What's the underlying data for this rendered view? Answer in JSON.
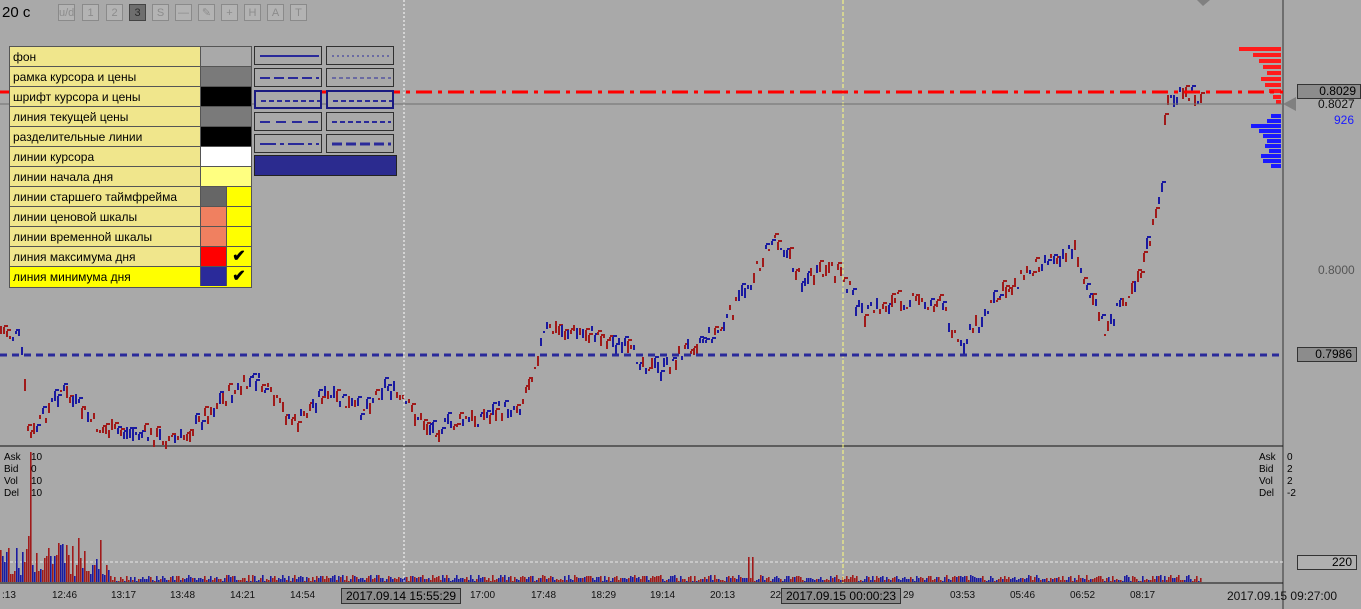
{
  "toolbar": {
    "timeframe": "20 с",
    "buttons": [
      "u/d",
      "1",
      "2",
      "3",
      "S",
      "—",
      "✎",
      "+",
      "H",
      "A",
      "T"
    ],
    "active_index": 3
  },
  "settings": {
    "rows": [
      {
        "label": "фон",
        "color": "#a9a9a9",
        "checkbox": false
      },
      {
        "label": "рамка курсора и цены",
        "color": "#7a7a7a",
        "checkbox": false
      },
      {
        "label": "шрифт курсора и цены",
        "color": "#000000",
        "checkbox": false
      },
      {
        "label": "линия текущей цены",
        "color": "#7a7a7a",
        "checkbox": false
      },
      {
        "label": "разделительные линии",
        "color": "#000000",
        "checkbox": false
      },
      {
        "label": "линии курсора",
        "color": "#ffffff",
        "checkbox": false
      },
      {
        "label": "линии начала дня",
        "color": "#ffff80",
        "checkbox": false
      },
      {
        "label": "линии старшего таймфрейма",
        "color": "#666666",
        "checkbox": true,
        "checked": false
      },
      {
        "label": "линии ценовой шкалы",
        "color": "#f08060",
        "checkbox": true,
        "checked": false
      },
      {
        "label": "линии временной шкалы",
        "color": "#f08060",
        "checkbox": true,
        "checked": false
      },
      {
        "label": "линия максимума дня",
        "color": "#ff0000",
        "checkbox": true,
        "checked": true
      },
      {
        "label": "линия минимума дня",
        "color": "#2a2a9a",
        "checkbox": true,
        "checked": true
      }
    ],
    "check_mark": "✔"
  },
  "prices": {
    "high_box": "0.8029",
    "current": "0.8027",
    "volume_at_price": "926",
    "level_0800": "0.8000",
    "low_box": "0.7986"
  },
  "stats_left": {
    "labels": [
      "Ask",
      "Bid",
      "Vol",
      "Del"
    ],
    "values": [
      "10",
      "0",
      "10",
      "10"
    ]
  },
  "stats_right": {
    "labels": [
      "Ask",
      "Bid",
      "Vol",
      "Del"
    ],
    "values": [
      "0",
      "2",
      "2",
      "-2"
    ]
  },
  "volume_box": "220",
  "time_axis": {
    "labels": [
      ":13",
      "12:46",
      "13:17",
      "13:48",
      "14:21",
      "14:54",
      "17:00",
      "17:48",
      "18:29",
      "19:14",
      "20:13",
      "22",
      "29",
      "03:53",
      "05:46",
      "06:52",
      "08:17"
    ],
    "cursor_time_1": "2017.09.14 15:55:29",
    "cursor_time_2": "2017.09.15 00:00:23",
    "current_time": "2017.09.15 09:27:00"
  },
  "colors": {
    "up": "#1a1aa0",
    "down": "#a01a1a",
    "high_line": "#ff0000",
    "low_line": "#2a2a9a",
    "cursor_line": "#ffffff",
    "day_start_line": "#ffff80"
  }
}
